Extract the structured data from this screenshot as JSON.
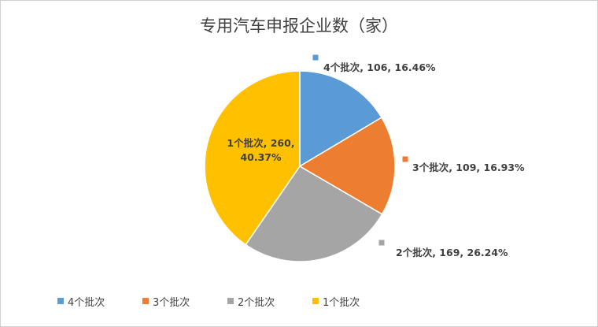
{
  "chart_data": {
    "type": "pie",
    "title": "专用汽车申报企业数（家）",
    "categories": [
      "4个批次",
      "3个批次",
      "2个批次",
      "1个批次"
    ],
    "values": [
      106,
      109,
      169,
      260
    ],
    "value_labels": [
      "4个批次, 106, 16.46%",
      "3个批次, 109, 16.93%",
      "2个批次, 169, 26.24%",
      "1个批次, 260, 40.37%"
    ],
    "colors": [
      "#5b9bd5",
      "#ed7d31",
      "#a5a5a5",
      "#ffc000"
    ],
    "legend": "bottom"
  }
}
